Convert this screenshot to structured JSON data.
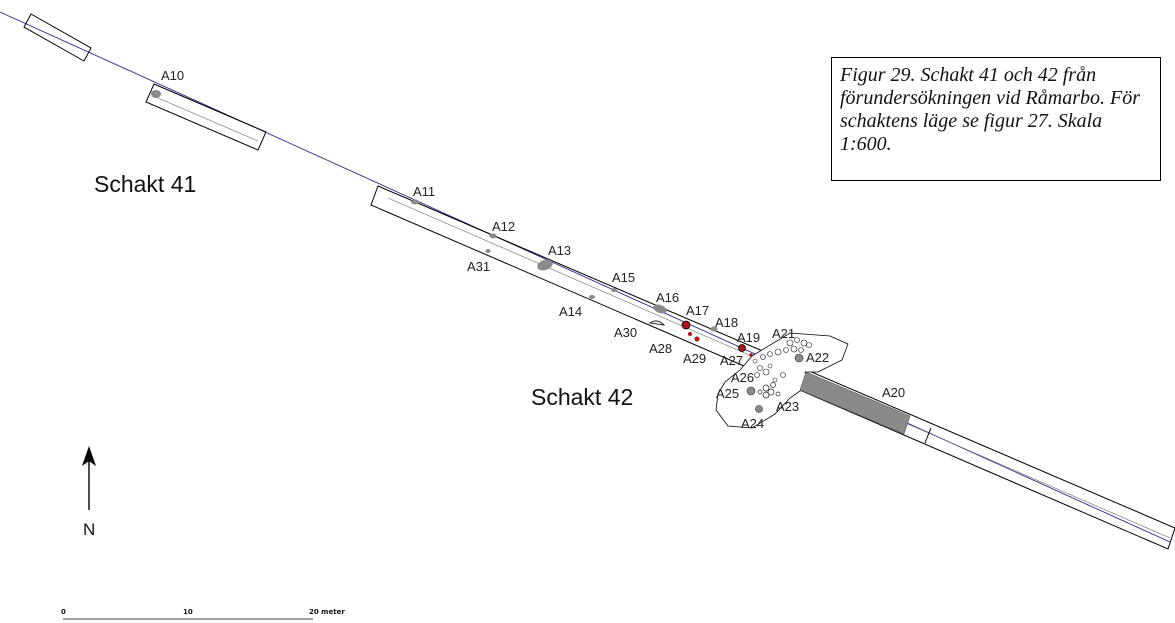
{
  "trench_labels": {
    "schakt41": "Schakt 41",
    "schakt42": "Schakt 42"
  },
  "features": {
    "A10": "A10",
    "A11": "A11",
    "A12": "A12",
    "A13": "A13",
    "A14": "A14",
    "A15": "A15",
    "A16": "A16",
    "A17": "A17",
    "A18": "A18",
    "A19": "A19",
    "A20": "A20",
    "A21": "A21",
    "A22": "A22",
    "A23": "A23",
    "A24": "A24",
    "A25": "A25",
    "A26": "A26",
    "A27": "A27",
    "A28": "A28",
    "A29": "A29",
    "A30": "A30",
    "A31": "A31"
  },
  "caption": "Figur 29. Schakt 41 och 42 från förundersökningen vid Råmarbo. För schaktens läge se figur 27. Skala 1:600.",
  "north_arrow": {
    "label": "N"
  },
  "scale_bar": {
    "tick_0": "0",
    "tick_10": "10",
    "tick_20": "20 meter"
  },
  "colors": {
    "line": "#000000",
    "centerline": "#2b2b8f",
    "feature_fill": "#8a8a8a",
    "charcoal_red": "#b3141b"
  }
}
